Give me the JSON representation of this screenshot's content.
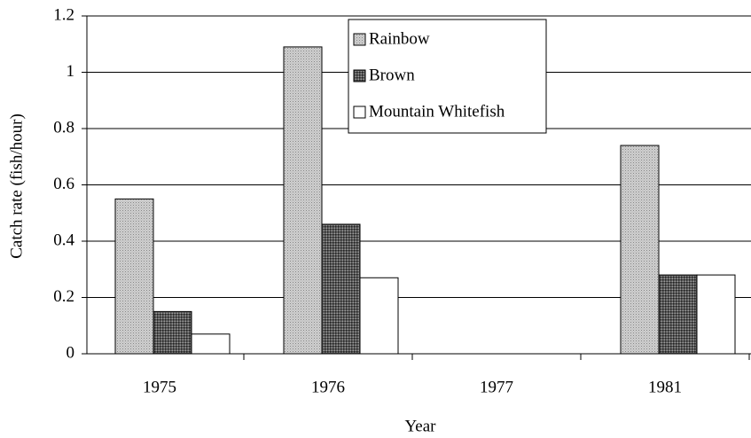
{
  "chart_data": {
    "type": "bar",
    "x_label": "Year",
    "y_label": "Catch rate (fish/hour)",
    "categories": [
      "1975",
      "1976",
      "1977",
      "1981"
    ],
    "series": [
      {
        "name": "Rainbow",
        "color": "#cfcfcf",
        "values": [
          0.55,
          1.09,
          null,
          0.74
        ]
      },
      {
        "name": "Brown",
        "color": "#555555",
        "values": [
          0.15,
          0.46,
          null,
          0.28
        ]
      },
      {
        "name": "Mountain Whitefish",
        "color": "#ffffff",
        "values": [
          0.07,
          0.27,
          null,
          0.28
        ]
      }
    ],
    "ylim": [
      0,
      1.2
    ],
    "yticks": [
      0,
      0.2,
      0.4,
      0.6,
      0.8,
      1,
      1.2
    ],
    "grid": true
  }
}
